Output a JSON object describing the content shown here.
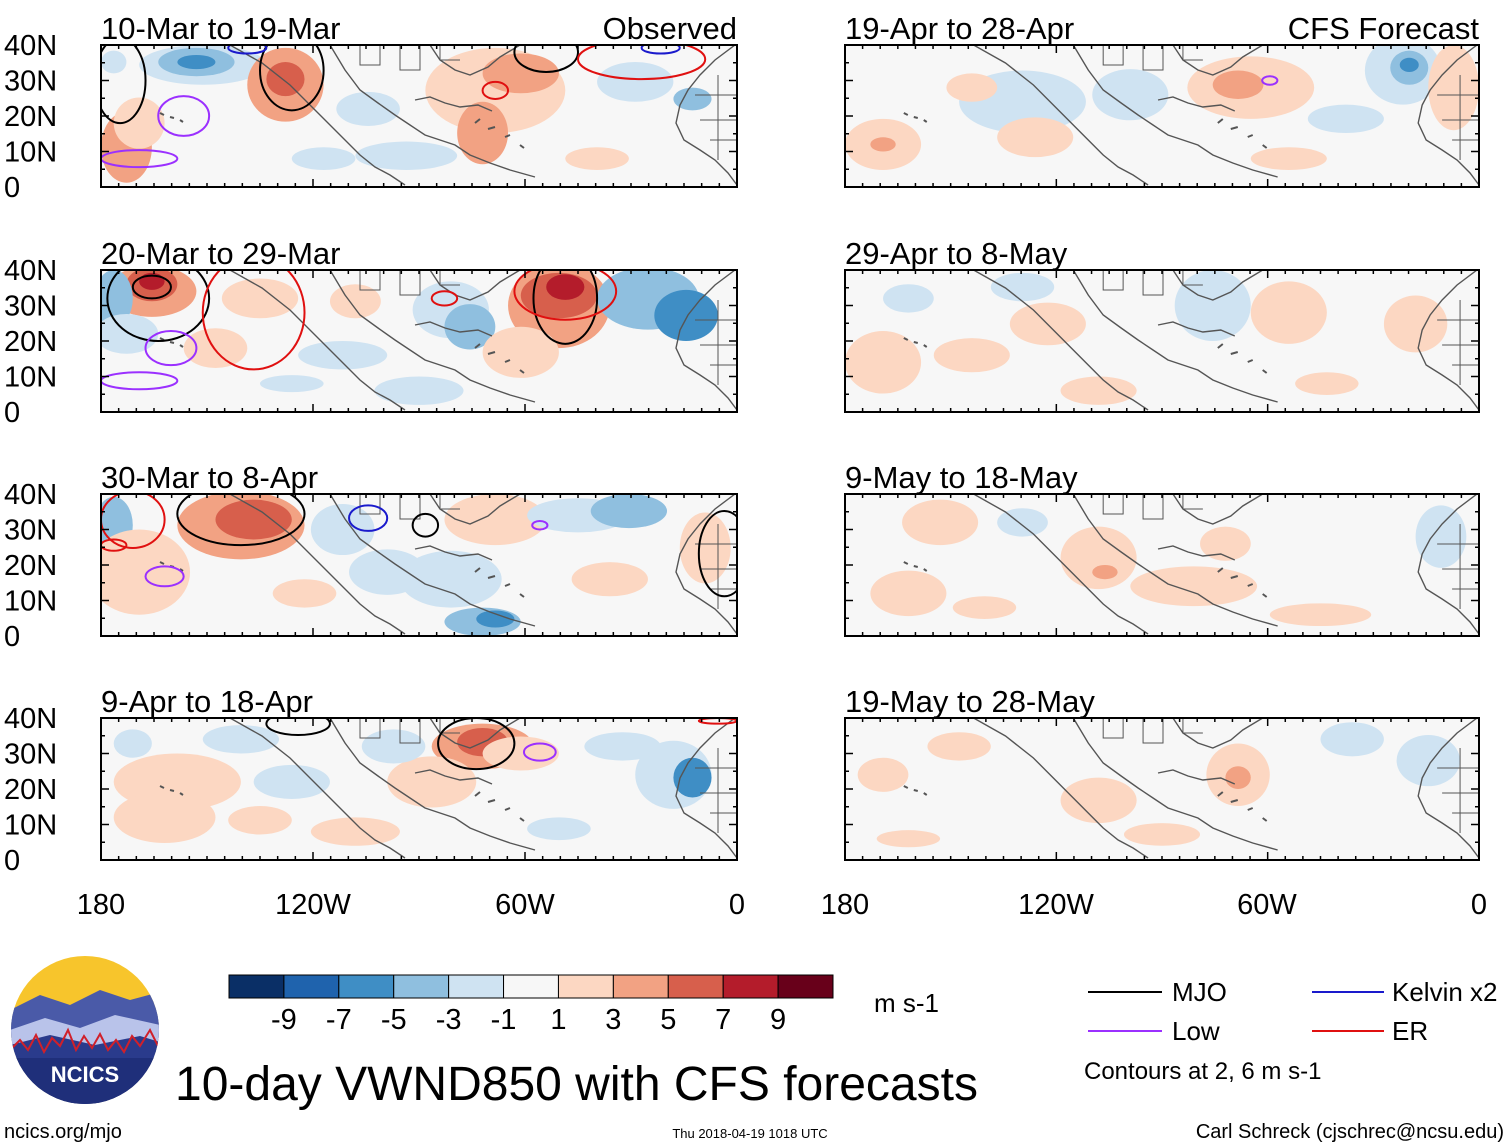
{
  "figure_title": "10-day VWND850 with CFS forecasts",
  "chart_data": {
    "type": "heatmap",
    "variable": "VWND850",
    "xaxis": {
      "ticks": [
        "180",
        "120W",
        "60W",
        "0"
      ],
      "range_deg_lon": [
        -180,
        0
      ]
    },
    "yaxis": {
      "ticks": [
        "40N",
        "30N",
        "20N",
        "10N",
        "0"
      ],
      "range_deg_lat": [
        0,
        40
      ]
    },
    "columns": [
      {
        "label": "Observed",
        "periods": [
          "10-Mar to 19-Mar",
          "20-Mar to 29-Mar",
          "30-Mar to 8-Apr",
          "9-Apr to 18-Apr"
        ]
      },
      {
        "label": "CFS Forecast",
        "periods": [
          "19-Apr to 28-Apr",
          "29-Apr to 8-May",
          "9-May to 18-May",
          "19-May to 28-May"
        ]
      }
    ],
    "colorbar": {
      "unit": "m s-1",
      "tick_labels": [
        "-9",
        "-7",
        "-5",
        "-3",
        "-1",
        "1",
        "3",
        "5",
        "7",
        "9"
      ],
      "colors": [
        "#0a2f66",
        "#1f63ad",
        "#3f8ec5",
        "#8fbfdf",
        "#cfe3f2",
        "#f7f7f7",
        "#fcd7c2",
        "#f2a283",
        "#d75f4c",
        "#b41c2b",
        "#68001a"
      ]
    },
    "legend": [
      {
        "label": "MJO",
        "color": "#000000"
      },
      {
        "label": "Kelvin x2",
        "color": "#1a1acc"
      },
      {
        "label": "Low",
        "color": "#9b30ff"
      },
      {
        "label": "ER",
        "color": "#e01010"
      }
    ],
    "contour_note": "Contours at 2, 6 m s-1"
  },
  "logo": {
    "text": "NCICS"
  },
  "footer": {
    "left": "ncics.org/mjo",
    "center": "Thu 2018-04-19 1018 UTC",
    "right": "Carl Schreck (cjschrec@ncsu.edu)"
  }
}
